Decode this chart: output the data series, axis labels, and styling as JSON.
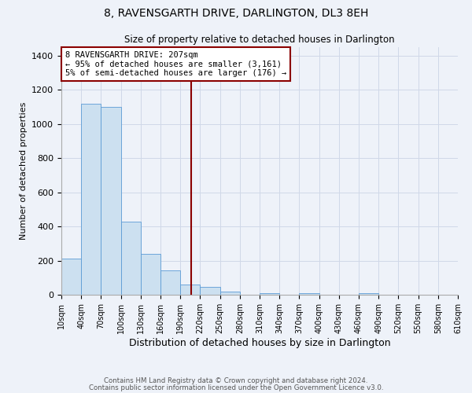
{
  "title": "8, RAVENSGARTH DRIVE, DARLINGTON, DL3 8EH",
  "subtitle": "Size of property relative to detached houses in Darlington",
  "xlabel": "Distribution of detached houses by size in Darlington",
  "ylabel": "Number of detached properties",
  "footer_line1": "Contains HM Land Registry data © Crown copyright and database right 2024.",
  "footer_line2": "Contains public sector information licensed under the Open Government Licence v3.0.",
  "annotation_line1": "8 RAVENSGARTH DRIVE: 207sqm",
  "annotation_line2": "← 95% of detached houses are smaller (3,161)",
  "annotation_line3": "5% of semi-detached houses are larger (176) →",
  "bar_color": "#cce0f0",
  "bar_edge_color": "#5b9bd5",
  "vline_color": "#8b0000",
  "annotation_box_edge": "#8b0000",
  "background_color": "#eef2f9",
  "grid_color": "#d0d8e8",
  "bin_edges": [
    10,
    40,
    70,
    100,
    130,
    160,
    190,
    220,
    250,
    280,
    310,
    340,
    370,
    400,
    430,
    460,
    490,
    520,
    550,
    580,
    610
  ],
  "bar_heights": [
    210,
    1120,
    1100,
    430,
    240,
    145,
    60,
    45,
    20,
    0,
    10,
    0,
    10,
    0,
    0,
    10,
    0,
    0,
    0,
    0
  ],
  "property_size": 207,
  "ylim": [
    0,
    1450
  ],
  "yticks": [
    0,
    200,
    400,
    600,
    800,
    1000,
    1200,
    1400
  ],
  "tick_labels": [
    "10sqm",
    "40sqm",
    "70sqm",
    "100sqm",
    "130sqm",
    "160sqm",
    "190sqm",
    "220sqm",
    "250sqm",
    "280sqm",
    "310sqm",
    "340sqm",
    "370sqm",
    "400sqm",
    "430sqm",
    "460sqm",
    "490sqm",
    "520sqm",
    "550sqm",
    "580sqm",
    "610sqm"
  ]
}
